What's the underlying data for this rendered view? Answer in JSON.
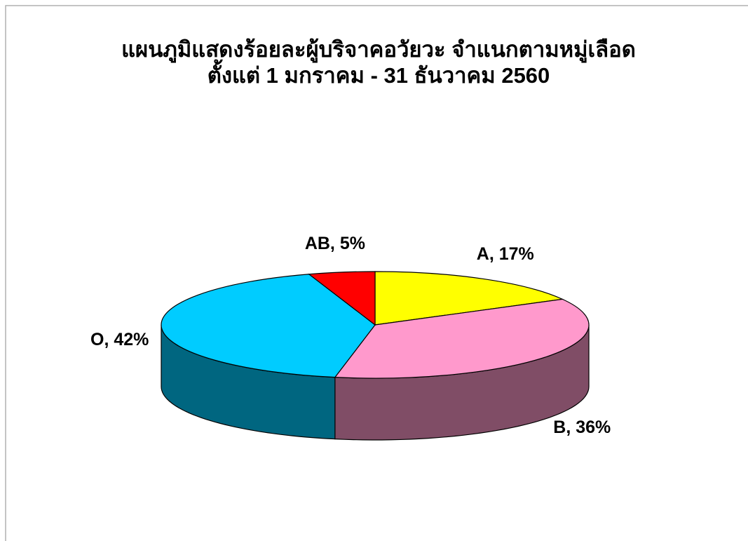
{
  "chart_data": {
    "type": "pie3d",
    "title": "แผนภูมิแสดงร้อยละผู้บริจาคอวัยวะ จำแนกตามหมู่เลือด",
    "subtitle": "ตั้งแต่ 1 มกราคม - 31 ธันวาคม 2560",
    "categories": [
      "A",
      "B",
      "O",
      "AB"
    ],
    "values": [
      17,
      36,
      42,
      5
    ],
    "value_labels": [
      "A, 17%",
      "B, 36%",
      "O, 42%",
      "AB, 5%"
    ],
    "colors": [
      "#ffff00",
      "#ff99cc",
      "#00ccff",
      "#ff0000"
    ]
  }
}
